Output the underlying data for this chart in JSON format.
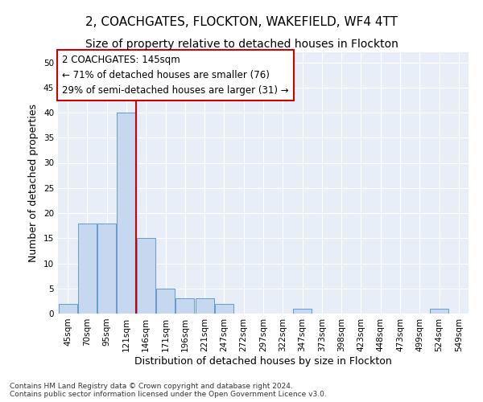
{
  "title1": "2, COACHGATES, FLOCKTON, WAKEFIELD, WF4 4TT",
  "title2": "Size of property relative to detached houses in Flockton",
  "xlabel": "Distribution of detached houses by size in Flockton",
  "ylabel": "Number of detached properties",
  "footnote": "Contains HM Land Registry data © Crown copyright and database right 2024.\nContains public sector information licensed under the Open Government Licence v3.0.",
  "categories": [
    "45sqm",
    "70sqm",
    "95sqm",
    "121sqm",
    "146sqm",
    "171sqm",
    "196sqm",
    "221sqm",
    "247sqm",
    "272sqm",
    "297sqm",
    "322sqm",
    "347sqm",
    "373sqm",
    "398sqm",
    "423sqm",
    "448sqm",
    "473sqm",
    "499sqm",
    "524sqm",
    "549sqm"
  ],
  "values": [
    2,
    18,
    18,
    40,
    15,
    5,
    3,
    3,
    2,
    0,
    0,
    0,
    1,
    0,
    0,
    0,
    0,
    0,
    0,
    1,
    0
  ],
  "bar_color": "#c5d8f0",
  "bar_edge_color": "#6699cc",
  "annotation_box_text": "2 COACHGATES: 145sqm\n← 71% of detached houses are smaller (76)\n29% of semi-detached houses are larger (31) →",
  "vline_x": 3.5,
  "vline_color": "#cc0000",
  "ylim": [
    0,
    52
  ],
  "yticks": [
    0,
    5,
    10,
    15,
    20,
    25,
    30,
    35,
    40,
    45,
    50
  ],
  "bg_color": "#e8eef8",
  "grid_color": "#ffffff",
  "title1_fontsize": 11,
  "title2_fontsize": 10,
  "xlabel_fontsize": 9,
  "ylabel_fontsize": 9,
  "tick_fontsize": 7.5,
  "annot_fontsize": 8.5,
  "footnote_fontsize": 6.5
}
